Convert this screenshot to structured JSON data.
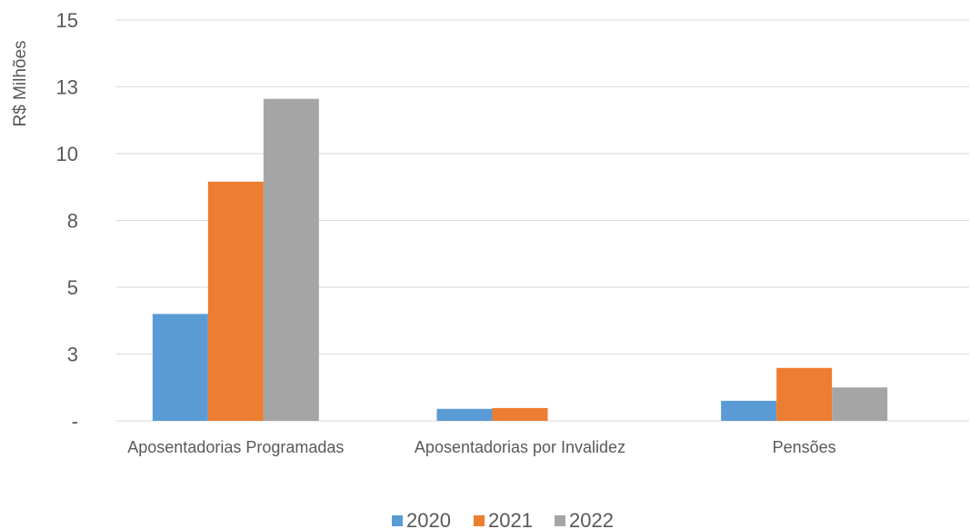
{
  "chart_data": {
    "type": "bar",
    "title": "",
    "xlabel": "",
    "ylabel": "R$ Milhões",
    "ylim": [
      0,
      15
    ],
    "yticks": [
      {
        "value": 0,
        "label": "-"
      },
      {
        "value": 2.5,
        "label": "3"
      },
      {
        "value": 5,
        "label": "5"
      },
      {
        "value": 7.5,
        "label": "8"
      },
      {
        "value": 10,
        "label": "10"
      },
      {
        "value": 12.5,
        "label": "13"
      },
      {
        "value": 15,
        "label": "15"
      }
    ],
    "grid": true,
    "legend_position": "bottom",
    "categories": [
      "Aposentadorias Programadas",
      "Aposentadorias por Invalidez",
      "Pensões"
    ],
    "series": [
      {
        "name": "2020",
        "color": "#5B9BD5",
        "values": [
          4.0,
          0.45,
          0.75
        ]
      },
      {
        "name": "2021",
        "color": "#ED7D31",
        "values": [
          8.95,
          0.48,
          1.98
        ]
      },
      {
        "name": "2022",
        "color": "#A5A5A5",
        "values": [
          12.05,
          0.0,
          1.25
        ]
      }
    ]
  }
}
